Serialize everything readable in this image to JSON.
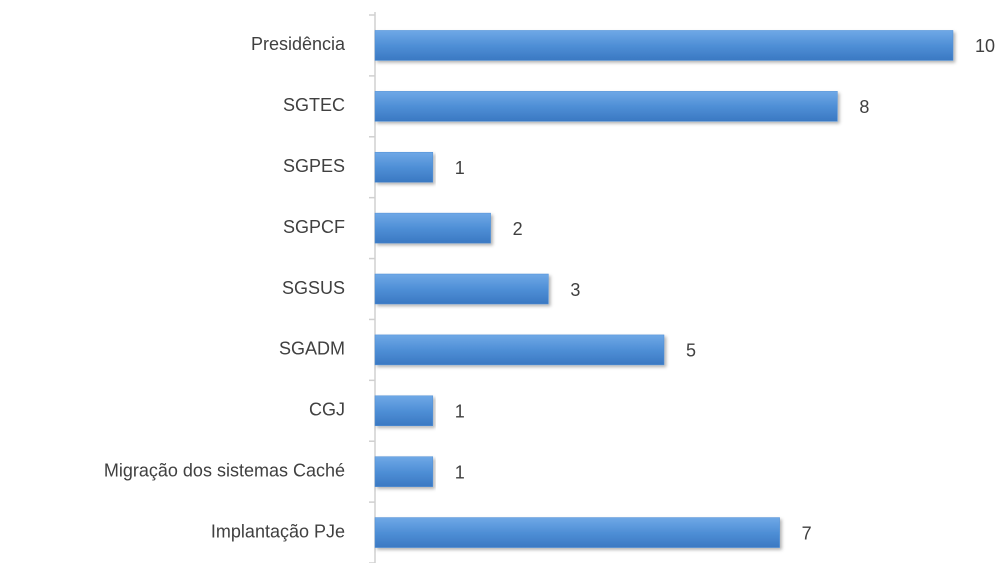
{
  "chart_data": {
    "type": "hbar",
    "categories": [
      "Presidência",
      "SGTEC",
      "SGPES",
      "SGPCF",
      "SGSUS",
      "SGADM",
      "CGJ",
      "Migração dos sistemas Caché",
      "Implantação PJe"
    ],
    "values": [
      10,
      8,
      1,
      2,
      3,
      5,
      1,
      1,
      7
    ],
    "color": "#4f8fd6"
  }
}
